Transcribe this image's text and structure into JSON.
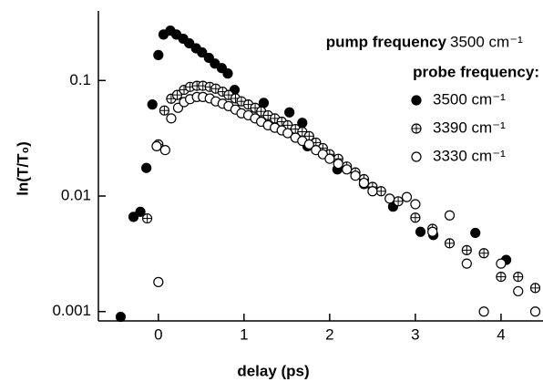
{
  "chart_data": {
    "type": "scatter",
    "ylabel": "ln(T/T₀)",
    "xlabel": "delay (ps)",
    "log_y": true,
    "xlim": [
      -0.7,
      4.49
    ],
    "ylim": [
      0.00083,
      0.4
    ],
    "xticks": [
      0,
      1,
      2,
      3,
      4
    ],
    "yticks": [
      0.001,
      0.01,
      0.1
    ],
    "annotations": {
      "pump_label": "pump frequency",
      "pump_value": "3500 cm⁻¹",
      "probe_label": "probe frequency:"
    },
    "series": [
      {
        "name": "3500 cm⁻¹",
        "color": "#000",
        "marker": "filled",
        "x": [
          -0.44,
          -0.29,
          -0.21,
          -0.14,
          -0.07,
          0.0,
          0.06,
          0.14,
          0.21,
          0.29,
          0.36,
          0.44,
          0.51,
          0.59,
          0.66,
          0.74,
          0.81,
          0.89,
          1.23,
          1.53,
          1.68,
          1.74,
          2.09,
          2.4,
          2.74,
          3.06,
          3.21,
          3.7,
          4.06
        ],
        "values": [
          0.0009,
          0.0066,
          0.0073,
          0.0175,
          0.062,
          0.166,
          0.25,
          0.27,
          0.25,
          0.23,
          0.21,
          0.19,
          0.175,
          0.157,
          0.14,
          0.128,
          0.115,
          0.083,
          0.064,
          0.053,
          0.043,
          0.027,
          0.017,
          0.0127,
          0.0081,
          0.0049,
          0.0046,
          0.0048,
          0.0028
        ]
      },
      {
        "name": "3390 cm⁻¹",
        "color": "#000",
        "marker": "cross",
        "x": [
          -0.13,
          0.0,
          0.07,
          0.15,
          0.22,
          0.3,
          0.37,
          0.45,
          0.52,
          0.6,
          0.67,
          0.75,
          0.82,
          0.9,
          0.97,
          1.05,
          1.13,
          1.2,
          1.28,
          1.36,
          1.44,
          1.51,
          1.6,
          1.68,
          1.76,
          1.84,
          1.92,
          2.0,
          2.1,
          2.2,
          2.3,
          2.4,
          2.5,
          2.6,
          2.8,
          3.0,
          3.2,
          3.4,
          3.6,
          3.8,
          4.0,
          4.2,
          4.4
        ],
        "values": [
          0.0064,
          0.028,
          0.055,
          0.0696,
          0.075,
          0.083,
          0.088,
          0.09,
          0.09,
          0.088,
          0.085,
          0.08,
          0.075,
          0.07,
          0.066,
          0.062,
          0.058,
          0.054,
          0.05,
          0.047,
          0.044,
          0.041,
          0.038,
          0.036,
          0.033,
          0.029,
          0.026,
          0.023,
          0.021,
          0.018,
          0.016,
          0.014,
          0.012,
          0.011,
          0.009,
          0.0065,
          0.0052,
          0.0039,
          0.0034,
          0.0032,
          0.002,
          0.002,
          0.0016
        ]
      },
      {
        "name": "3330 cm⁻¹",
        "color": "#000",
        "marker": "open",
        "x": [
          0.0,
          -0.02,
          0.08,
          0.15,
          0.23,
          0.3,
          0.37,
          0.45,
          0.52,
          0.6,
          0.67,
          0.75,
          0.82,
          0.9,
          0.97,
          1.05,
          1.13,
          1.2,
          1.28,
          1.36,
          1.44,
          1.51,
          1.6,
          1.68,
          1.76,
          1.84,
          1.92,
          2.0,
          2.1,
          2.2,
          2.3,
          2.4,
          2.5,
          2.7,
          2.9,
          3.0,
          3.2,
          3.4,
          3.6,
          3.8,
          4.0,
          4.2,
          4.4
        ],
        "values": [
          0.0018,
          0.027,
          0.025,
          0.047,
          0.058,
          0.065,
          0.069,
          0.072,
          0.072,
          0.07,
          0.066,
          0.063,
          0.06,
          0.056,
          0.052,
          0.05,
          0.047,
          0.044,
          0.041,
          0.039,
          0.037,
          0.035,
          0.032,
          0.03,
          0.028,
          0.025,
          0.023,
          0.021,
          0.019,
          0.017,
          0.015,
          0.013,
          0.011,
          0.0095,
          0.0098,
          0.0085,
          0.0049,
          0.0068,
          0.0026,
          0.001,
          0.0026,
          0.0015,
          0.001
        ]
      }
    ]
  }
}
